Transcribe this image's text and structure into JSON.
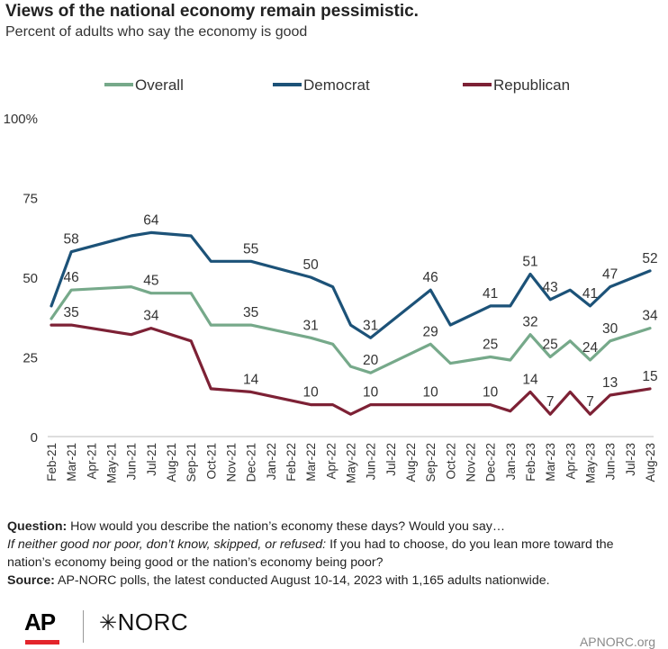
{
  "header": {
    "title": "Views of the national economy remain pessimistic.",
    "subtitle": "Percent of adults who say the economy is good"
  },
  "chart_data": {
    "type": "line",
    "x": [
      "Feb-21",
      "Mar-21",
      "Apr-21",
      "May-21",
      "Jun-21",
      "Jul-21",
      "Aug-21",
      "Sep-21",
      "Oct-21",
      "Nov-21",
      "Dec-21",
      "Jan-22",
      "Feb-22",
      "Mar-22",
      "Apr-22",
      "May-22",
      "Jun-22",
      "Jul-22",
      "Aug-22",
      "Sep-22",
      "Oct-22",
      "Nov-22",
      "Dec-22",
      "Jan-23",
      "Feb-23",
      "Mar-23",
      "Apr-23",
      "May-23",
      "Jun-23",
      "Jul-23",
      "Aug-23"
    ],
    "x_tick_labels": [
      "Feb-21",
      "Mar-21",
      "Apr-21",
      "May-21",
      "Jun-21",
      "Jul-21",
      "Aug-21",
      "Sep-21",
      "Oct-21",
      "Nov-21",
      "Dec-21",
      "Jan-22",
      "Feb-22",
      "Mar-22",
      "Apr-22",
      "May-22",
      "Jun-22",
      "Jul-22",
      "Aug-22",
      "Sep-22",
      "Oct-22",
      "Nov-22",
      "Dec-22",
      "Jan-23",
      "Feb-23",
      "Mar-23",
      "Apr-23",
      "May-23",
      "Jun-23",
      "Jul-23",
      "Aug-23"
    ],
    "ylim": [
      0,
      100
    ],
    "y_tick_labels": [
      "0",
      "25",
      "50",
      "75",
      "100%"
    ],
    "y_ticks": [
      0,
      25,
      50,
      75,
      100
    ],
    "grid": false,
    "legend_position": "top",
    "series": [
      {
        "name": "Overall",
        "color": "#76a98a",
        "points": [
          {
            "x": 0,
            "y": 37
          },
          {
            "x": 1,
            "y": 46
          },
          {
            "x": 4,
            "y": 47
          },
          {
            "x": 5,
            "y": 45
          },
          {
            "x": 7,
            "y": 45
          },
          {
            "x": 8,
            "y": 35
          },
          {
            "x": 10,
            "y": 35
          },
          {
            "x": 13,
            "y": 31
          },
          {
            "x": 14.1,
            "y": 29
          },
          {
            "x": 15,
            "y": 22
          },
          {
            "x": 16,
            "y": 20
          },
          {
            "x": 19,
            "y": 29
          },
          {
            "x": 20,
            "y": 23
          },
          {
            "x": 22,
            "y": 25
          },
          {
            "x": 23,
            "y": 24
          },
          {
            "x": 24,
            "y": 32
          },
          {
            "x": 25,
            "y": 25
          },
          {
            "x": 26,
            "y": 30
          },
          {
            "x": 27,
            "y": 24
          },
          {
            "x": 28,
            "y": 30
          },
          {
            "x": 30,
            "y": 34
          }
        ],
        "labels": [
          {
            "x": 1,
            "y": 46,
            "text": "46"
          },
          {
            "x": 5,
            "y": 45,
            "text": "45"
          },
          {
            "x": 10,
            "y": 35,
            "text": "35"
          },
          {
            "x": 13,
            "y": 31,
            "text": "31"
          },
          {
            "x": 16,
            "y": 20,
            "text": "20"
          },
          {
            "x": 19,
            "y": 29,
            "text": "29"
          },
          {
            "x": 22,
            "y": 25,
            "text": "25"
          },
          {
            "x": 24,
            "y": 32,
            "text": "32"
          },
          {
            "x": 25,
            "y": 25,
            "text": "25"
          },
          {
            "x": 27,
            "y": 24,
            "text": "24"
          },
          {
            "x": 28,
            "y": 30,
            "text": "30"
          },
          {
            "x": 30,
            "y": 34,
            "text": "34"
          }
        ]
      },
      {
        "name": "Democrat",
        "color": "#1c5278",
        "points": [
          {
            "x": 0,
            "y": 41
          },
          {
            "x": 1,
            "y": 58
          },
          {
            "x": 4,
            "y": 63
          },
          {
            "x": 5,
            "y": 64
          },
          {
            "x": 7,
            "y": 63
          },
          {
            "x": 8,
            "y": 55
          },
          {
            "x": 10,
            "y": 55
          },
          {
            "x": 13,
            "y": 50
          },
          {
            "x": 14.1,
            "y": 47
          },
          {
            "x": 15,
            "y": 35
          },
          {
            "x": 16,
            "y": 31
          },
          {
            "x": 19,
            "y": 46
          },
          {
            "x": 20,
            "y": 35
          },
          {
            "x": 22,
            "y": 41
          },
          {
            "x": 23,
            "y": 41
          },
          {
            "x": 24,
            "y": 51
          },
          {
            "x": 25,
            "y": 43
          },
          {
            "x": 26,
            "y": 46
          },
          {
            "x": 27,
            "y": 41
          },
          {
            "x": 28,
            "y": 47
          },
          {
            "x": 30,
            "y": 52
          }
        ],
        "labels": [
          {
            "x": 1,
            "y": 58,
            "text": "58"
          },
          {
            "x": 5,
            "y": 64,
            "text": "64"
          },
          {
            "x": 10,
            "y": 55,
            "text": "55"
          },
          {
            "x": 13,
            "y": 50,
            "text": "50"
          },
          {
            "x": 16,
            "y": 31,
            "text": "31"
          },
          {
            "x": 19,
            "y": 46,
            "text": "46"
          },
          {
            "x": 22,
            "y": 41,
            "text": "41"
          },
          {
            "x": 24,
            "y": 51,
            "text": "51"
          },
          {
            "x": 25,
            "y": 43,
            "text": "43"
          },
          {
            "x": 27,
            "y": 41,
            "text": "41"
          },
          {
            "x": 28,
            "y": 47,
            "text": "47"
          },
          {
            "x": 30,
            "y": 52,
            "text": "52"
          }
        ]
      },
      {
        "name": "Republican",
        "color": "#7d2135",
        "points": [
          {
            "x": 0,
            "y": 35
          },
          {
            "x": 1,
            "y": 35
          },
          {
            "x": 4,
            "y": 32
          },
          {
            "x": 5,
            "y": 34
          },
          {
            "x": 7,
            "y": 30
          },
          {
            "x": 8,
            "y": 15
          },
          {
            "x": 10,
            "y": 14
          },
          {
            "x": 13,
            "y": 10
          },
          {
            "x": 14.1,
            "y": 10
          },
          {
            "x": 15,
            "y": 7
          },
          {
            "x": 16,
            "y": 10
          },
          {
            "x": 19,
            "y": 10
          },
          {
            "x": 20,
            "y": 10
          },
          {
            "x": 22,
            "y": 10
          },
          {
            "x": 23,
            "y": 8
          },
          {
            "x": 24,
            "y": 14
          },
          {
            "x": 25,
            "y": 7
          },
          {
            "x": 26,
            "y": 14
          },
          {
            "x": 27,
            "y": 7
          },
          {
            "x": 28,
            "y": 13
          },
          {
            "x": 30,
            "y": 15
          }
        ],
        "labels": [
          {
            "x": 1,
            "y": 35,
            "text": "35"
          },
          {
            "x": 5,
            "y": 34,
            "text": "34"
          },
          {
            "x": 10,
            "y": 14,
            "text": "14"
          },
          {
            "x": 13,
            "y": 10,
            "text": "10"
          },
          {
            "x": 16,
            "y": 10,
            "text": "10"
          },
          {
            "x": 19,
            "y": 10,
            "text": "10"
          },
          {
            "x": 22,
            "y": 10,
            "text": "10"
          },
          {
            "x": 24,
            "y": 14,
            "text": "14"
          },
          {
            "x": 25,
            "y": 7,
            "text": "7"
          },
          {
            "x": 27,
            "y": 7,
            "text": "7"
          },
          {
            "x": 28,
            "y": 13,
            "text": "13"
          },
          {
            "x": 30,
            "y": 15,
            "text": "15"
          }
        ]
      }
    ]
  },
  "notes": {
    "question_label": "Question:",
    "question_text": " How would you describe the nation’s economy these days? Would you say…",
    "followup_label": "If neither good nor poor, don’t know, skipped, or refused:",
    "followup_text": " If you had to choose, do you lean more toward the nation’s economy being good or the nation’s economy being poor?",
    "source_label": "Source:",
    "source_text": " AP-NORC polls, the latest conducted August 10-14, 2023 with 1,165 adults nationwide."
  },
  "footer": {
    "ap_logo": "AP",
    "norc_logo_star": "✳",
    "norc_logo_text": "NORC",
    "site": "APNORC.org"
  }
}
